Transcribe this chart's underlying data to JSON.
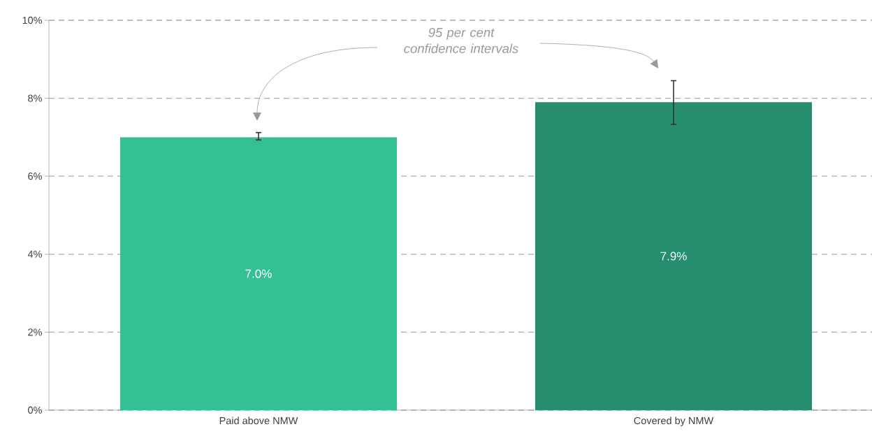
{
  "chart_data": {
    "type": "bar",
    "categories": [
      "Paid above NMW",
      "Covered by NMW"
    ],
    "values": [
      7.0,
      7.9
    ],
    "colors": [
      "#33c095",
      "#268d6f"
    ],
    "errors": [
      [
        6.93,
        7.12
      ],
      [
        7.33,
        8.45
      ]
    ],
    "value_labels": [
      "7.0%",
      "7.9%"
    ],
    "ylim": [
      0,
      10
    ],
    "yticks": [
      {
        "value": 0,
        "label": "0%"
      },
      {
        "value": 2,
        "label": "2%"
      },
      {
        "value": 4,
        "label": "4%"
      },
      {
        "value": 6,
        "label": "6%"
      },
      {
        "value": 8,
        "label": "8%"
      },
      {
        "value": 10,
        "label": "10%"
      }
    ],
    "grid": "y",
    "annotations": [
      "95 per cent confidence intervals"
    ]
  }
}
